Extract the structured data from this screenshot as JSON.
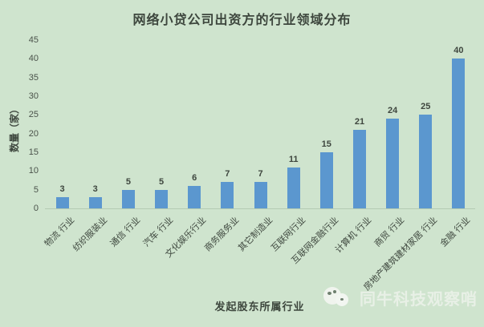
{
  "page": {
    "background_color": "#cfe4ce"
  },
  "chart_data": {
    "type": "bar",
    "title": "网络小贷公司出资方的行业领域分布",
    "xlabel": "发起股东所属行业",
    "ylabel": "数量（家）",
    "categories": [
      "物流 行业",
      "纺织服装业",
      "通信 行业",
      "汽车 行业",
      "文化娱乐行业",
      "商务服务业",
      "其它制造业",
      "互联网行业",
      "互联网金融行业",
      "计算机 行业",
      "商贸 行业",
      "房地产建筑建材家居 行业",
      "金融 行业"
    ],
    "values": [
      3,
      3,
      5,
      5,
      6,
      7,
      7,
      11,
      15,
      21,
      24,
      25,
      40
    ],
    "ylim": [
      0,
      45
    ],
    "ytick_step": 5,
    "yticks": [
      0,
      5,
      10,
      15,
      20,
      25,
      30,
      35,
      40,
      45
    ],
    "grid": false,
    "legend": "none",
    "bar_color": "#5b97cf",
    "text_color": "#3e463e"
  },
  "watermark": {
    "text": "同牛科技观察哨",
    "logo": "chat-bubbles-logo"
  }
}
